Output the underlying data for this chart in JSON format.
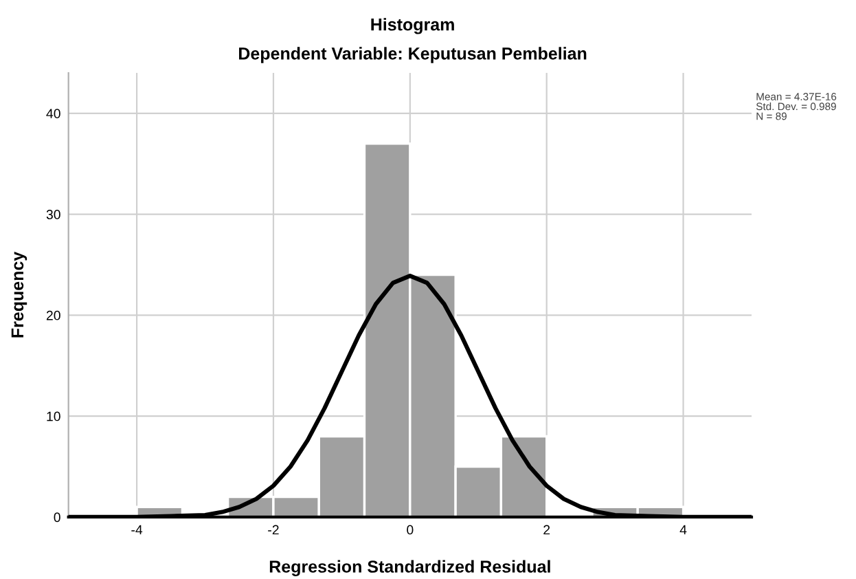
{
  "chart_data": {
    "type": "histogram",
    "title": "Histogram",
    "subtitle": "Dependent Variable: Keputusan Pembelian",
    "xlabel": "Regression Standardized Residual",
    "ylabel": "Frequency",
    "bins": [
      -4,
      -3.333,
      -2.667,
      -2,
      -1.333,
      -0.667,
      0,
      0.667,
      1.333,
      2,
      2.667,
      3.333,
      4
    ],
    "values": [
      1,
      0,
      2,
      2,
      8,
      37,
      24,
      5,
      8,
      0,
      1,
      1
    ],
    "color": "#a0a0a0",
    "series": [
      {
        "type": "line",
        "color": "#000000",
        "x": [
          -5,
          -4,
          -3.5,
          -3,
          -2.75,
          -2.5,
          -2.25,
          -2,
          -1.75,
          -1.5,
          -1.25,
          -1,
          -0.75,
          -0.5,
          -0.25,
          0,
          0.25,
          0.5,
          0.75,
          1,
          1.25,
          1.5,
          1.75,
          2,
          2.25,
          2.5,
          2.75,
          3,
          3.5,
          4,
          5
        ],
        "values": [
          0,
          0,
          0.1,
          0.2,
          0.5,
          1,
          1.8,
          3.1,
          5,
          7.6,
          10.8,
          14.4,
          18,
          21.1,
          23.2,
          23.9,
          23.2,
          21.1,
          18,
          14.4,
          10.8,
          7.6,
          5,
          3.1,
          1.8,
          1,
          0.5,
          0.2,
          0.1,
          0,
          0
        ]
      }
    ],
    "annotations": [
      "Mean = 4.37E-16\nStd. Dev. = 0.989\nN = 89"
    ],
    "xlim": [
      -5,
      5
    ],
    "ylim": [
      0,
      44
    ],
    "xticks": [
      -4,
      -2,
      0,
      2,
      4
    ],
    "yticks": [
      0,
      10,
      20,
      30,
      40
    ],
    "grid": true
  }
}
